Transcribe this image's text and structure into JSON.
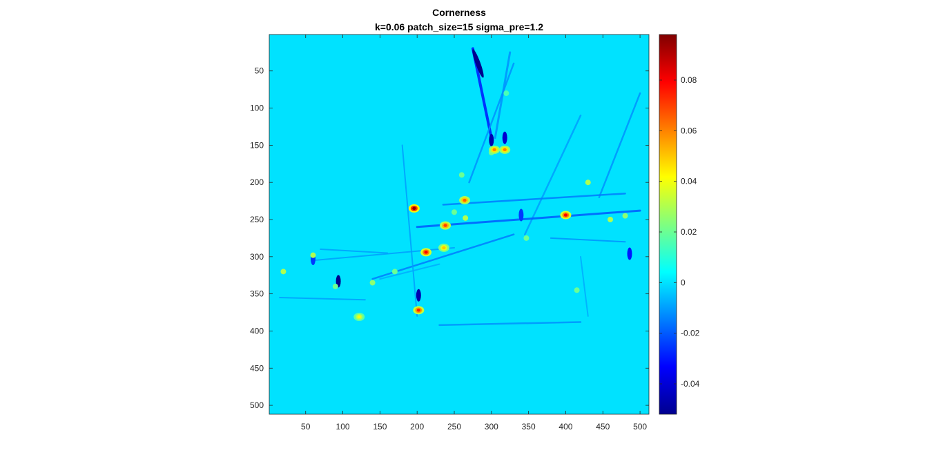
{
  "chart_data": {
    "type": "heatmap",
    "title": "Cornerness",
    "subtitle": "k=0.06 patch_size=15 sigma_pre=1.2",
    "xlabel": "",
    "ylabel": "",
    "xlim": [
      1,
      512
    ],
    "ylim": [
      1,
      512
    ],
    "y_reversed": true,
    "x_ticks": [
      50,
      100,
      150,
      200,
      250,
      300,
      350,
      400,
      450,
      500
    ],
    "y_ticks": [
      50,
      100,
      150,
      200,
      250,
      300,
      350,
      400,
      450,
      500
    ],
    "colormap": "jet",
    "colorbar": {
      "range": [
        -0.052,
        0.098
      ],
      "ticks": [
        -0.04,
        -0.02,
        0,
        0.02,
        0.04,
        0.06,
        0.08
      ],
      "tick_labels": [
        "-0.04",
        "-0.02",
        "0",
        "0.02",
        "0.04",
        "0.06",
        "0.08"
      ]
    },
    "background_value": 0,
    "strong_peaks": [
      {
        "x": 196,
        "y": 235,
        "value": 0.095
      },
      {
        "x": 212,
        "y": 294,
        "value": 0.08
      },
      {
        "x": 400,
        "y": 244,
        "value": 0.08
      },
      {
        "x": 202,
        "y": 372,
        "value": 0.075
      },
      {
        "x": 238,
        "y": 258,
        "value": 0.07
      },
      {
        "x": 264,
        "y": 224,
        "value": 0.065
      },
      {
        "x": 304,
        "y": 156,
        "value": 0.06
      },
      {
        "x": 318,
        "y": 156,
        "value": 0.06
      },
      {
        "x": 236,
        "y": 288,
        "value": 0.05
      },
      {
        "x": 122,
        "y": 381,
        "value": 0.04
      }
    ],
    "minor_peaks": [
      {
        "x": 20,
        "y": 320,
        "value": 0.03
      },
      {
        "x": 60,
        "y": 298,
        "value": 0.03
      },
      {
        "x": 140,
        "y": 335,
        "value": 0.025
      },
      {
        "x": 265,
        "y": 248,
        "value": 0.03
      },
      {
        "x": 347,
        "y": 275,
        "value": 0.02
      },
      {
        "x": 300,
        "y": 160,
        "value": 0.02
      },
      {
        "x": 460,
        "y": 250,
        "value": 0.03
      },
      {
        "x": 480,
        "y": 245,
        "value": 0.025
      },
      {
        "x": 430,
        "y": 200,
        "value": 0.03
      },
      {
        "x": 415,
        "y": 345,
        "value": 0.02
      },
      {
        "x": 260,
        "y": 190,
        "value": 0.02
      },
      {
        "x": 320,
        "y": 80,
        "value": 0.015
      },
      {
        "x": 170,
        "y": 320,
        "value": 0.02
      },
      {
        "x": 90,
        "y": 340,
        "value": 0.02
      },
      {
        "x": 250,
        "y": 240,
        "value": 0.02
      }
    ],
    "negative_features": [
      {
        "x": 282,
        "y": 40,
        "value": -0.05
      },
      {
        "x": 300,
        "y": 143,
        "value": -0.045
      },
      {
        "x": 318,
        "y": 140,
        "value": -0.04
      },
      {
        "x": 94,
        "y": 333,
        "value": -0.05
      },
      {
        "x": 202,
        "y": 352,
        "value": -0.045
      },
      {
        "x": 486,
        "y": 296,
        "value": -0.03
      },
      {
        "x": 60,
        "y": 303,
        "value": -0.025
      },
      {
        "x": 340,
        "y": 244,
        "value": -0.025
      }
    ]
  }
}
